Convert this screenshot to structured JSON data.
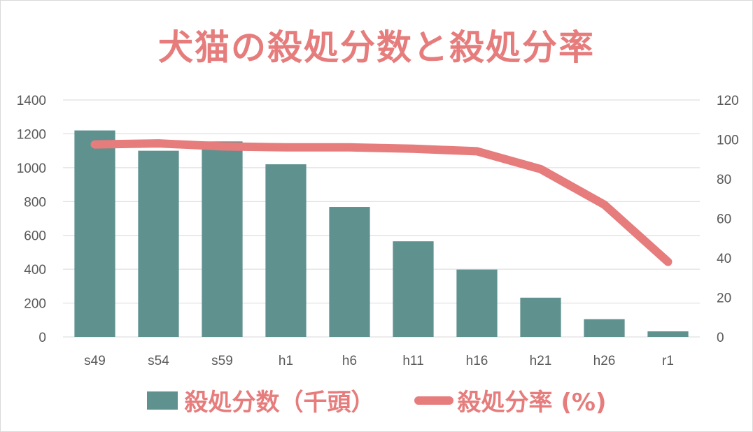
{
  "chart_data": {
    "type": "bar",
    "title": "犬猫の殺処分数と殺処分率",
    "categories": [
      "s49",
      "s54",
      "s59",
      "h1",
      "h6",
      "h11",
      "h16",
      "h21",
      "h26",
      "r1"
    ],
    "series": [
      {
        "name": "殺処分数（千頭）",
        "type": "bar",
        "axis": "left",
        "color": "#5f918f",
        "values": [
          1220,
          1100,
          1155,
          1020,
          768,
          565,
          398,
          232,
          105,
          33
        ]
      },
      {
        "name": "殺処分率 (%)",
        "type": "line",
        "axis": "right",
        "color": "#e67c7c",
        "values": [
          97.5,
          98,
          96.5,
          96,
          96,
          95.3,
          94,
          85,
          67,
          38
        ]
      }
    ],
    "y_left": {
      "min": 0,
      "max": 1400,
      "step": 200,
      "ticks": [
        "0",
        "200",
        "400",
        "600",
        "800",
        "1000",
        "1200",
        "1400"
      ]
    },
    "y_right": {
      "min": 0,
      "max": 120,
      "step": 20,
      "ticks": [
        "0",
        "20",
        "40",
        "60",
        "80",
        "100",
        "120"
      ]
    },
    "grid": true,
    "legend_position": "bottom"
  }
}
